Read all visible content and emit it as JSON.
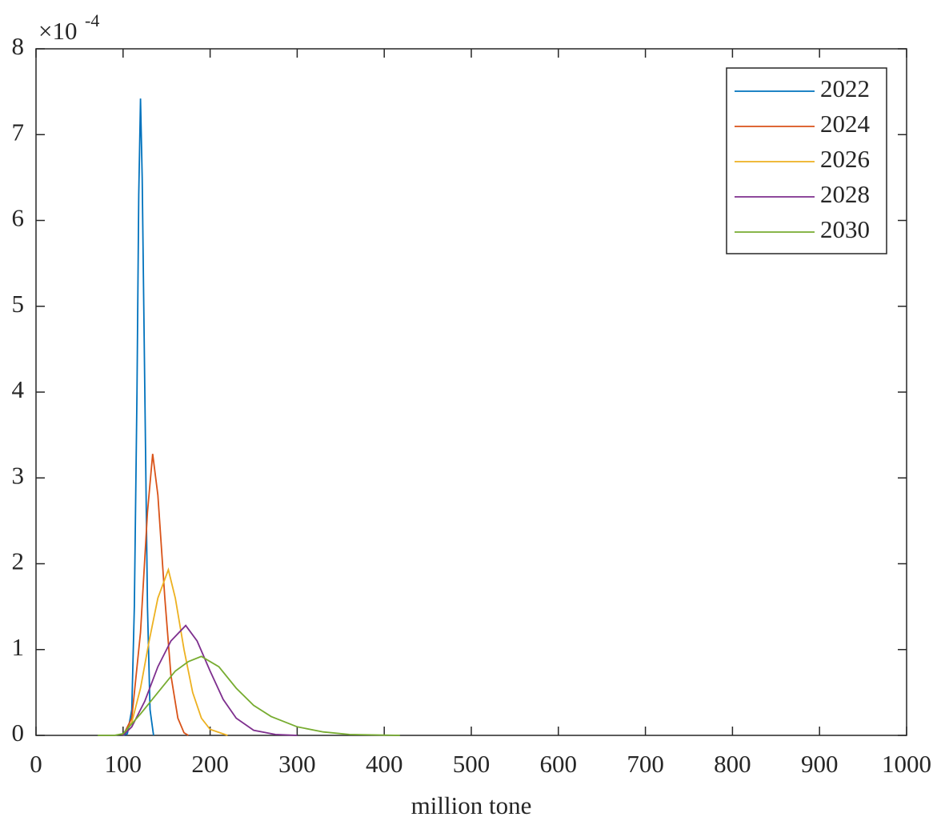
{
  "chart_data": {
    "type": "line",
    "x_label": "million tone",
    "y_scale_label": "×10",
    "y_scale_exponent": "-4",
    "xlim": [
      0,
      1000
    ],
    "xticks": [
      0,
      100,
      200,
      300,
      400,
      500,
      600,
      700,
      800,
      900,
      1000
    ],
    "ylim": [
      0,
      8
    ],
    "yticks": [
      0,
      1,
      2,
      3,
      4,
      5,
      6,
      7,
      8
    ],
    "legend": "upper right",
    "series": [
      {
        "name": "2022",
        "color": "#0072BD",
        "x": [
          100,
          105,
          110,
          113,
          116,
          118,
          120,
          122,
          125,
          128,
          131,
          135
        ],
        "values": [
          0,
          0.02,
          0.3,
          1.5,
          4,
          6.3,
          7.42,
          6.5,
          4,
          1.5,
          0.3,
          0
        ]
      },
      {
        "name": "2024",
        "color": "#D95319",
        "x": [
          100,
          110,
          120,
          128,
          134,
          140,
          148,
          155,
          163,
          170,
          175
        ],
        "values": [
          0,
          0.2,
          1.2,
          2.6,
          3.28,
          2.8,
          1.6,
          0.7,
          0.2,
          0.03,
          0
        ]
      },
      {
        "name": "2026",
        "color": "#EDB120",
        "x": [
          100,
          110,
          120,
          130,
          140,
          152,
          160,
          170,
          180,
          190,
          200,
          220
        ],
        "values": [
          0,
          0.15,
          0.55,
          1.1,
          1.6,
          1.93,
          1.6,
          1.0,
          0.5,
          0.2,
          0.07,
          0
        ]
      },
      {
        "name": "2028",
        "color": "#7E2F8E",
        "x": [
          100,
          110,
          125,
          140,
          155,
          172,
          185,
          200,
          215,
          230,
          250,
          275,
          300
        ],
        "values": [
          0,
          0.1,
          0.4,
          0.8,
          1.1,
          1.28,
          1.1,
          0.75,
          0.42,
          0.2,
          0.06,
          0.01,
          0
        ]
      },
      {
        "name": "2030",
        "color": "#77AC30",
        "x": [
          71,
          90,
          100,
          120,
          140,
          160,
          175,
          190,
          210,
          230,
          250,
          270,
          300,
          330,
          360,
          418
        ],
        "values": [
          0,
          0,
          0.02,
          0.25,
          0.5,
          0.75,
          0.86,
          0.92,
          0.8,
          0.55,
          0.35,
          0.22,
          0.1,
          0.04,
          0.01,
          0
        ]
      }
    ]
  }
}
